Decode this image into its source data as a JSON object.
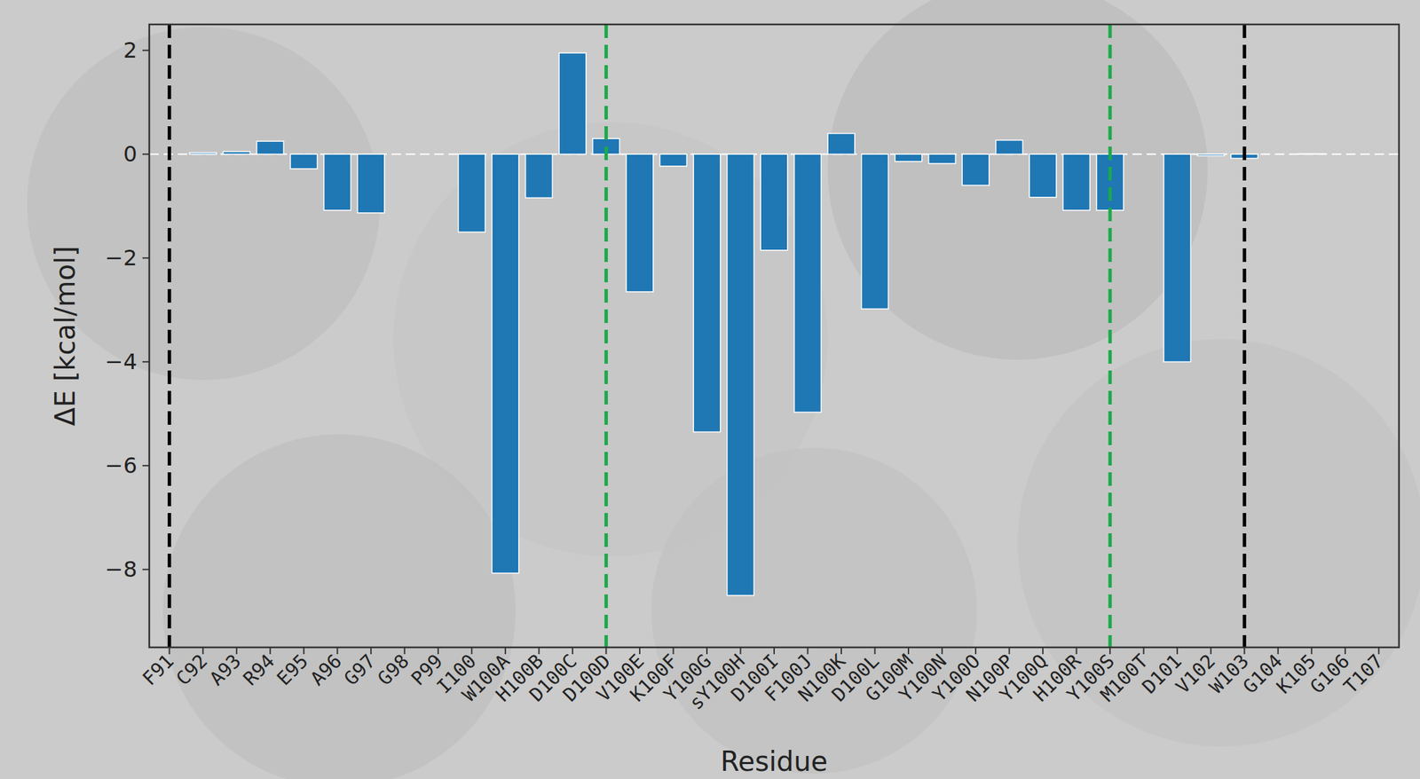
{
  "chart_data": {
    "type": "bar",
    "x_label": "Residue",
    "y_label": "ΔE [kcal/mol]",
    "categories": [
      "F91",
      "C92",
      "A93",
      "R94",
      "E95",
      "A96",
      "G97",
      "G98",
      "P99",
      "I100",
      "W100A",
      "H100B",
      "D100C",
      "D100D",
      "V100E",
      "K100F",
      "Y100G",
      "sY100H",
      "D100I",
      "F100J",
      "N100K",
      "D100L",
      "G100M",
      "Y100N",
      "Y100O",
      "N100P",
      "Y100Q",
      "H100R",
      "Y100S",
      "M100T",
      "D101",
      "V102",
      "W103",
      "G104",
      "K105",
      "G106",
      "T107"
    ],
    "values": [
      0,
      0.03,
      0.05,
      0.25,
      -0.28,
      -1.08,
      -1.13,
      0,
      0,
      -1.5,
      -8.07,
      -0.84,
      1.95,
      0.3,
      -2.65,
      -0.23,
      -5.35,
      -8.5,
      -1.85,
      -4.97,
      0.4,
      -2.98,
      -0.14,
      -0.18,
      -0.6,
      0.27,
      -0.83,
      -1.08,
      -1.08,
      0,
      -4.0,
      -0.03,
      -0.08,
      0,
      0.01,
      0,
      0
    ],
    "color": "#1f77b4",
    "ylim": [
      -9.5,
      2.5
    ],
    "yticks": [
      {
        "value": -8,
        "label": "−8"
      },
      {
        "value": -6,
        "label": "−6"
      },
      {
        "value": -4,
        "label": "−4"
      },
      {
        "value": -2,
        "label": "−2"
      },
      0,
      2
    ],
    "reference_lines": [
      {
        "category": "F91",
        "color": "#000000"
      },
      {
        "category": "D100D",
        "color": "#1aaa4a"
      },
      {
        "category": "Y100S",
        "color": "#1aaa4a"
      },
      {
        "category": "W103",
        "color": "#000000"
      }
    ],
    "grid": false
  }
}
